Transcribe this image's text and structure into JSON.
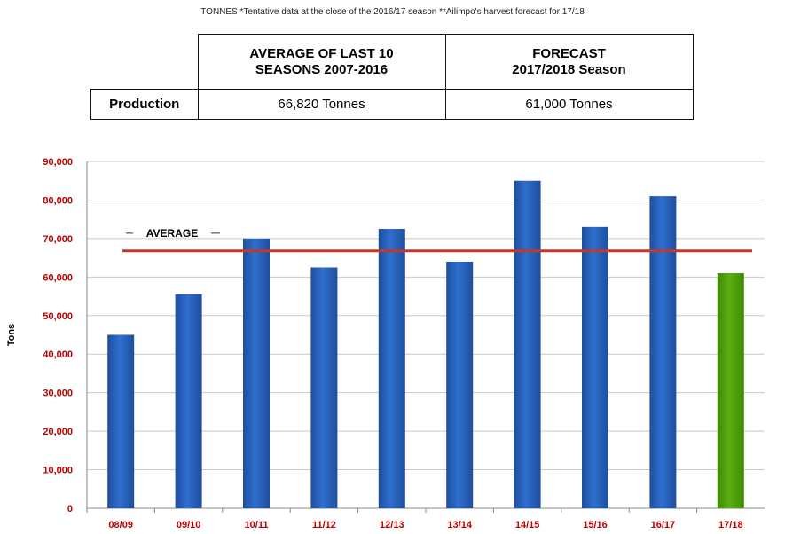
{
  "note": "TONNES *Tentative data at the close of the 2016/17 season **Ailimpo's harvest forecast for 17/18",
  "table": {
    "headers": [
      "AVERAGE OF LAST 10\nSEASONS 2007-2016",
      "FORECAST\n2017/2018 Season"
    ],
    "row_label": "Production",
    "values": [
      "66,820 Tonnes",
      "61,000 Tonnes"
    ]
  },
  "colors": {
    "bar": "#2e6fcf",
    "bar_forecast": "#5cae12",
    "average_line": "#c0392b",
    "tick_label": "#c00000",
    "grid": "#c8c8c8"
  },
  "chart_data": {
    "type": "bar",
    "categories": [
      "08/09",
      "09/10",
      "10/11",
      "11/12",
      "12/13",
      "13/14",
      "14/15",
      "15/16",
      "16/17",
      "17/18"
    ],
    "values": [
      45000,
      55500,
      70000,
      62500,
      72500,
      64000,
      85000,
      73000,
      81000,
      61000
    ],
    "highlight_index": 9,
    "average": {
      "label": "AVERAGE",
      "value": 66820
    },
    "title": "",
    "xlabel": "",
    "ylabel": "Tons",
    "ylim": [
      0,
      90000
    ],
    "yticks": [
      "0",
      "10,000",
      "20,000",
      "30,000",
      "40,000",
      "50,000",
      "60,000",
      "70,000",
      "80,000",
      "90,000"
    ],
    "grid": true,
    "legend": "none"
  }
}
